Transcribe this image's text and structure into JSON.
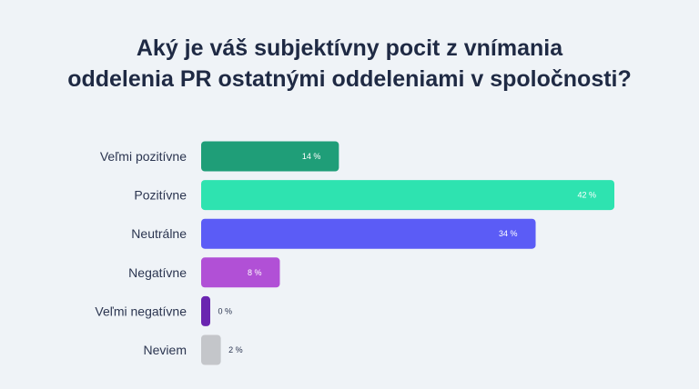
{
  "title_lines": [
    "Aký je váš subjektívny pocit z vnímania",
    "oddelenia PR ostatnými oddeleniami v spoločnosti?"
  ],
  "chart_data": {
    "type": "bar",
    "orientation": "horizontal",
    "title": "Aký je váš subjektívny pocit z vnímania oddelenia PR ostatnými oddeleniami v spoločnosti?",
    "categories": [
      "Veľmi pozitívne",
      "Pozitívne",
      "Neutrálne",
      "Negatívne",
      "Veľmi negatívne",
      "Neviem"
    ],
    "values": [
      14,
      42,
      34,
      8,
      0,
      2
    ],
    "value_labels": [
      "14 %",
      "42 %",
      "34 %",
      "8 %",
      "0 %",
      "2 %"
    ],
    "colors": [
      "#1f9e78",
      "#2ee3b0",
      "#5b5cf6",
      "#b150d6",
      "#6a25b0",
      "#c4c6ca"
    ],
    "xlim": [
      0,
      42
    ],
    "grid": false,
    "legend": "none"
  }
}
